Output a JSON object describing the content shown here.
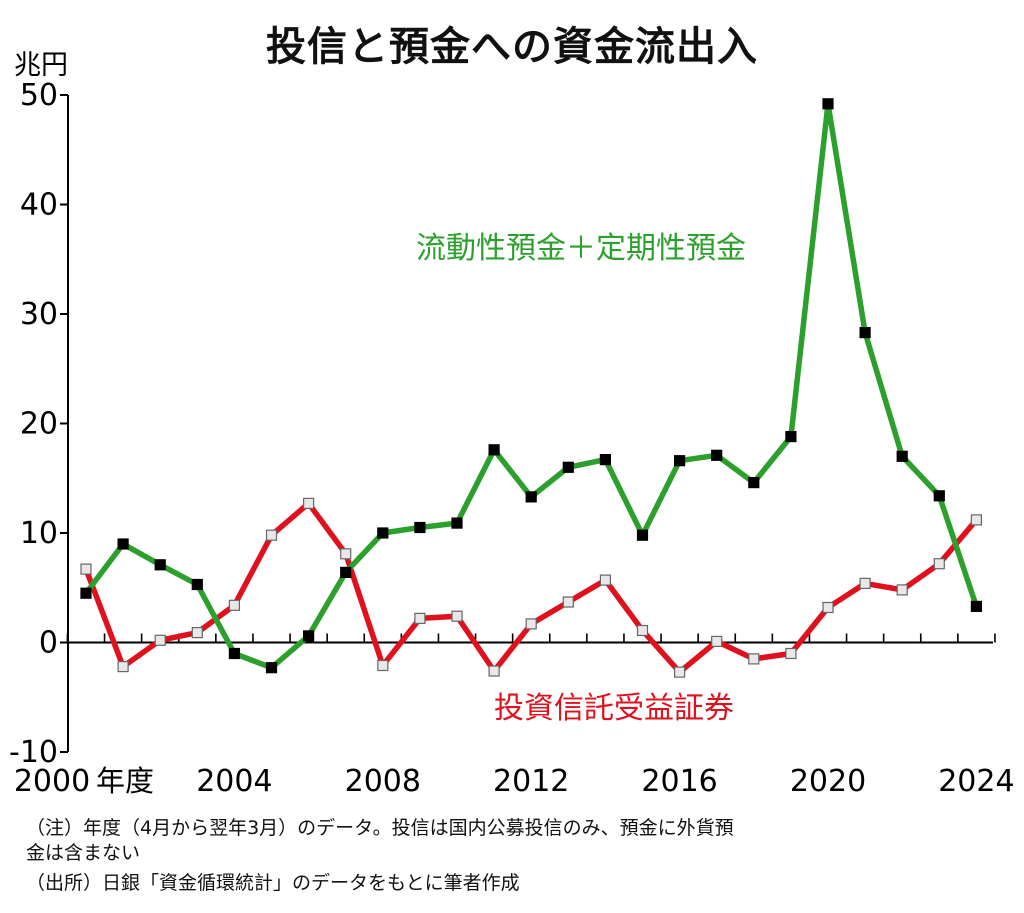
{
  "chart_data": {
    "type": "line",
    "title": "投信と預金への資金流出入",
    "ylabel": "兆円",
    "xlabel": "年度",
    "ylim": [
      -10,
      50
    ],
    "yticks": [
      -10,
      0,
      10,
      20,
      30,
      40,
      50
    ],
    "x": [
      2000,
      2001,
      2002,
      2003,
      2004,
      2005,
      2006,
      2007,
      2008,
      2009,
      2010,
      2011,
      2012,
      2013,
      2014,
      2015,
      2016,
      2017,
      2018,
      2019,
      2020,
      2021,
      2022,
      2023,
      2024
    ],
    "xtick_labels": [
      "2000",
      "2004",
      "2008",
      "2012",
      "2016",
      "2020",
      "2024"
    ],
    "series": [
      {
        "name": "流動性預金＋定期性預金",
        "color": "#2ca02c",
        "marker": "filled-black-square",
        "values": [
          4.5,
          9.0,
          7.1,
          5.3,
          -1.0,
          -2.3,
          0.6,
          6.4,
          10.0,
          10.5,
          10.9,
          17.6,
          13.3,
          16.0,
          16.7,
          9.8,
          16.6,
          17.1,
          14.6,
          18.8,
          49.2,
          28.3,
          17.0,
          13.4,
          3.3
        ]
      },
      {
        "name": "投資信託受益証券",
        "color": "#e0101c",
        "marker": "open-white-square",
        "values": [
          6.7,
          -2.2,
          0.2,
          0.9,
          3.4,
          9.8,
          12.7,
          8.1,
          -2.1,
          2.2,
          2.4,
          -2.6,
          1.7,
          3.7,
          5.7,
          1.1,
          -2.7,
          0.1,
          -1.5,
          -1.0,
          3.2,
          5.4,
          4.8,
          7.2,
          11.2
        ]
      }
    ],
    "annotations": [
      "流動性預金＋定期性預金",
      "投資信託受益証券"
    ]
  },
  "notes": [
    "（注）年度（4月から翌年3月）のデータ。投信は国内公募投信のみ、預金に外貨預",
    "金は含まない",
    "（出所）日銀「資金循環統計」のデータをもとに筆者作成"
  ]
}
